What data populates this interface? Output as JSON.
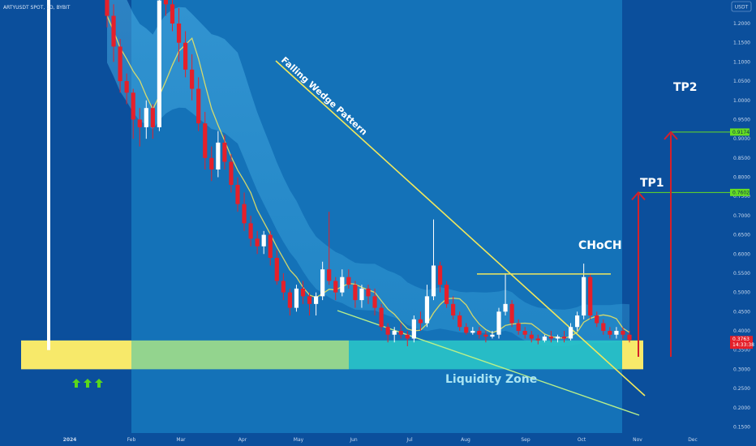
{
  "header": {
    "symbol": "ARTYUSDT SPOT, 1D, BYBIT",
    "currency": "USDT"
  },
  "colors": {
    "background": "#0b4f9c",
    "zone_yellow": "#f7e96a",
    "zone_green": "#93d48e",
    "zone_teal": "#29c4c8",
    "up": "#ffffff",
    "down": "#e5202a",
    "line_yellow": "#f2e85c",
    "target_line": "#66dd22",
    "price_tag": "#e5202a",
    "arrow_red": "#d5202a",
    "arrow_green": "#5ad81b"
  },
  "chart_data": {
    "type": "candlestick",
    "y_axis": {
      "ticks": [
        "1.2000",
        "1.1500",
        "1.1000",
        "1.0500",
        "1.0000",
        "0.9500",
        "0.9000",
        "0.8500",
        "0.8000",
        "0.7500",
        "0.7000",
        "0.6500",
        "0.6000",
        "0.5500",
        "0.5000",
        "0.4500",
        "0.4000",
        "0.3500",
        "0.3000",
        "0.2500",
        "0.2000",
        "0.1500"
      ],
      "range": [
        0.14,
        1.28
      ],
      "position": "right"
    },
    "x_axis": {
      "ticks": [
        "2024",
        "Feb",
        "Mar",
        "Apr",
        "May",
        "Jun",
        "Jul",
        "Aug",
        "Sep",
        "Oct",
        "Nov",
        "Dec"
      ]
    },
    "annotations": {
      "pattern_label": "Falling Wedge Pattern",
      "choch_label": "CHoCH",
      "liquidity_label": "Liquidity Zone",
      "tp1_label": "TP1",
      "tp2_label": "TP2"
    },
    "levels": {
      "tp1": {
        "price_label": "0.7602",
        "value": 0.7602
      },
      "tp2": {
        "price_label": "0.9174",
        "value": 0.9174
      },
      "current": {
        "price_label": "0.3763",
        "countdown": "14:33:38",
        "value": 0.3763
      },
      "choch": {
        "value": 0.548
      },
      "liquidity_zone": [
        0.3,
        0.375
      ]
    },
    "candles": [
      {
        "o": 1.28,
        "h": 1.28,
        "l": 1.19,
        "c": 1.22
      },
      {
        "o": 1.22,
        "h": 1.25,
        "l": 1.1,
        "c": 1.14
      },
      {
        "o": 1.14,
        "h": 1.16,
        "l": 1.02,
        "c": 1.05
      },
      {
        "o": 1.05,
        "h": 1.07,
        "l": 0.99,
        "c": 1.02
      },
      {
        "o": 1.02,
        "h": 1.03,
        "l": 0.9,
        "c": 0.95
      },
      {
        "o": 0.95,
        "h": 0.98,
        "l": 0.88,
        "c": 0.93
      },
      {
        "o": 0.93,
        "h": 1.0,
        "l": 0.9,
        "c": 0.98
      },
      {
        "o": 0.98,
        "h": 0.99,
        "l": 0.9,
        "c": 0.93
      },
      {
        "o": 0.93,
        "h": 1.28,
        "l": 0.92,
        "c": 1.26
      },
      {
        "o": 1.28,
        "h": 1.28,
        "l": 1.22,
        "c": 1.25
      },
      {
        "o": 1.25,
        "h": 1.28,
        "l": 1.18,
        "c": 1.2
      },
      {
        "o": 1.2,
        "h": 1.24,
        "l": 1.1,
        "c": 1.15
      },
      {
        "o": 1.15,
        "h": 1.18,
        "l": 1.06,
        "c": 1.08
      },
      {
        "o": 1.08,
        "h": 1.12,
        "l": 1.0,
        "c": 1.03
      },
      {
        "o": 1.03,
        "h": 1.06,
        "l": 0.92,
        "c": 0.94
      },
      {
        "o": 0.94,
        "h": 0.97,
        "l": 0.82,
        "c": 0.85
      },
      {
        "o": 0.85,
        "h": 0.88,
        "l": 0.79,
        "c": 0.82
      },
      {
        "o": 0.82,
        "h": 0.92,
        "l": 0.8,
        "c": 0.89
      },
      {
        "o": 0.89,
        "h": 0.91,
        "l": 0.82,
        "c": 0.84
      },
      {
        "o": 0.84,
        "h": 0.86,
        "l": 0.76,
        "c": 0.78
      },
      {
        "o": 0.78,
        "h": 0.8,
        "l": 0.71,
        "c": 0.73
      },
      {
        "o": 0.73,
        "h": 0.76,
        "l": 0.66,
        "c": 0.68
      },
      {
        "o": 0.68,
        "h": 0.7,
        "l": 0.62,
        "c": 0.64
      },
      {
        "o": 0.64,
        "h": 0.66,
        "l": 0.6,
        "c": 0.62
      },
      {
        "o": 0.62,
        "h": 0.66,
        "l": 0.6,
        "c": 0.65
      },
      {
        "o": 0.65,
        "h": 0.66,
        "l": 0.57,
        "c": 0.59
      },
      {
        "o": 0.59,
        "h": 0.61,
        "l": 0.52,
        "c": 0.53
      },
      {
        "o": 0.53,
        "h": 0.55,
        "l": 0.48,
        "c": 0.5
      },
      {
        "o": 0.5,
        "h": 0.51,
        "l": 0.44,
        "c": 0.46
      },
      {
        "o": 0.46,
        "h": 0.52,
        "l": 0.45,
        "c": 0.51
      },
      {
        "o": 0.51,
        "h": 0.53,
        "l": 0.47,
        "c": 0.49
      },
      {
        "o": 0.49,
        "h": 0.5,
        "l": 0.44,
        "c": 0.47
      },
      {
        "o": 0.47,
        "h": 0.5,
        "l": 0.44,
        "c": 0.49
      },
      {
        "o": 0.49,
        "h": 0.58,
        "l": 0.48,
        "c": 0.56
      },
      {
        "o": 0.56,
        "h": 0.71,
        "l": 0.52,
        "c": 0.53
      },
      {
        "o": 0.53,
        "h": 0.54,
        "l": 0.48,
        "c": 0.5
      },
      {
        "o": 0.5,
        "h": 0.56,
        "l": 0.49,
        "c": 0.54
      },
      {
        "o": 0.54,
        "h": 0.56,
        "l": 0.51,
        "c": 0.52
      },
      {
        "o": 0.52,
        "h": 0.53,
        "l": 0.46,
        "c": 0.48
      },
      {
        "o": 0.48,
        "h": 0.52,
        "l": 0.46,
        "c": 0.51
      },
      {
        "o": 0.51,
        "h": 0.52,
        "l": 0.47,
        "c": 0.49
      },
      {
        "o": 0.49,
        "h": 0.51,
        "l": 0.44,
        "c": 0.46
      },
      {
        "o": 0.46,
        "h": 0.47,
        "l": 0.4,
        "c": 0.41
      },
      {
        "o": 0.41,
        "h": 0.42,
        "l": 0.37,
        "c": 0.39
      },
      {
        "o": 0.39,
        "h": 0.41,
        "l": 0.37,
        "c": 0.4
      },
      {
        "o": 0.4,
        "h": 0.42,
        "l": 0.38,
        "c": 0.39
      },
      {
        "o": 0.39,
        "h": 0.4,
        "l": 0.36,
        "c": 0.38
      },
      {
        "o": 0.38,
        "h": 0.44,
        "l": 0.37,
        "c": 0.43
      },
      {
        "o": 0.43,
        "h": 0.45,
        "l": 0.4,
        "c": 0.42
      },
      {
        "o": 0.42,
        "h": 0.52,
        "l": 0.41,
        "c": 0.49
      },
      {
        "o": 0.49,
        "h": 0.69,
        "l": 0.48,
        "c": 0.57
      },
      {
        "o": 0.57,
        "h": 0.58,
        "l": 0.5,
        "c": 0.52
      },
      {
        "o": 0.52,
        "h": 0.53,
        "l": 0.46,
        "c": 0.47
      },
      {
        "o": 0.47,
        "h": 0.49,
        "l": 0.43,
        "c": 0.44
      },
      {
        "o": 0.44,
        "h": 0.45,
        "l": 0.4,
        "c": 0.41
      },
      {
        "o": 0.41,
        "h": 0.42,
        "l": 0.39,
        "c": 0.395
      },
      {
        "o": 0.395,
        "h": 0.41,
        "l": 0.39,
        "c": 0.4
      },
      {
        "o": 0.4,
        "h": 0.41,
        "l": 0.38,
        "c": 0.39
      },
      {
        "o": 0.39,
        "h": 0.4,
        "l": 0.37,
        "c": 0.385
      },
      {
        "o": 0.385,
        "h": 0.4,
        "l": 0.38,
        "c": 0.39
      },
      {
        "o": 0.39,
        "h": 0.46,
        "l": 0.38,
        "c": 0.45
      },
      {
        "o": 0.45,
        "h": 0.55,
        "l": 0.44,
        "c": 0.47
      },
      {
        "o": 0.47,
        "h": 0.48,
        "l": 0.41,
        "c": 0.42
      },
      {
        "o": 0.42,
        "h": 0.43,
        "l": 0.39,
        "c": 0.4
      },
      {
        "o": 0.4,
        "h": 0.41,
        "l": 0.38,
        "c": 0.39
      },
      {
        "o": 0.39,
        "h": 0.4,
        "l": 0.37,
        "c": 0.38
      },
      {
        "o": 0.38,
        "h": 0.39,
        "l": 0.365,
        "c": 0.375
      },
      {
        "o": 0.375,
        "h": 0.39,
        "l": 0.37,
        "c": 0.385
      },
      {
        "o": 0.385,
        "h": 0.4,
        "l": 0.37,
        "c": 0.38
      },
      {
        "o": 0.38,
        "h": 0.39,
        "l": 0.37,
        "c": 0.385
      },
      {
        "o": 0.385,
        "h": 0.4,
        "l": 0.37,
        "c": 0.38
      },
      {
        "o": 0.38,
        "h": 0.42,
        "l": 0.375,
        "c": 0.41
      },
      {
        "o": 0.41,
        "h": 0.45,
        "l": 0.4,
        "c": 0.44
      },
      {
        "o": 0.44,
        "h": 0.575,
        "l": 0.43,
        "c": 0.54
      },
      {
        "o": 0.54,
        "h": 0.55,
        "l": 0.43,
        "c": 0.44
      },
      {
        "o": 0.44,
        "h": 0.45,
        "l": 0.41,
        "c": 0.42
      },
      {
        "o": 0.42,
        "h": 0.43,
        "l": 0.39,
        "c": 0.4
      },
      {
        "o": 0.4,
        "h": 0.41,
        "l": 0.38,
        "c": 0.39
      },
      {
        "o": 0.39,
        "h": 0.41,
        "l": 0.38,
        "c": 0.4
      },
      {
        "o": 0.4,
        "h": 0.41,
        "l": 0.38,
        "c": 0.39
      },
      {
        "o": 0.39,
        "h": 0.4,
        "l": 0.37,
        "c": 0.3763
      }
    ]
  }
}
